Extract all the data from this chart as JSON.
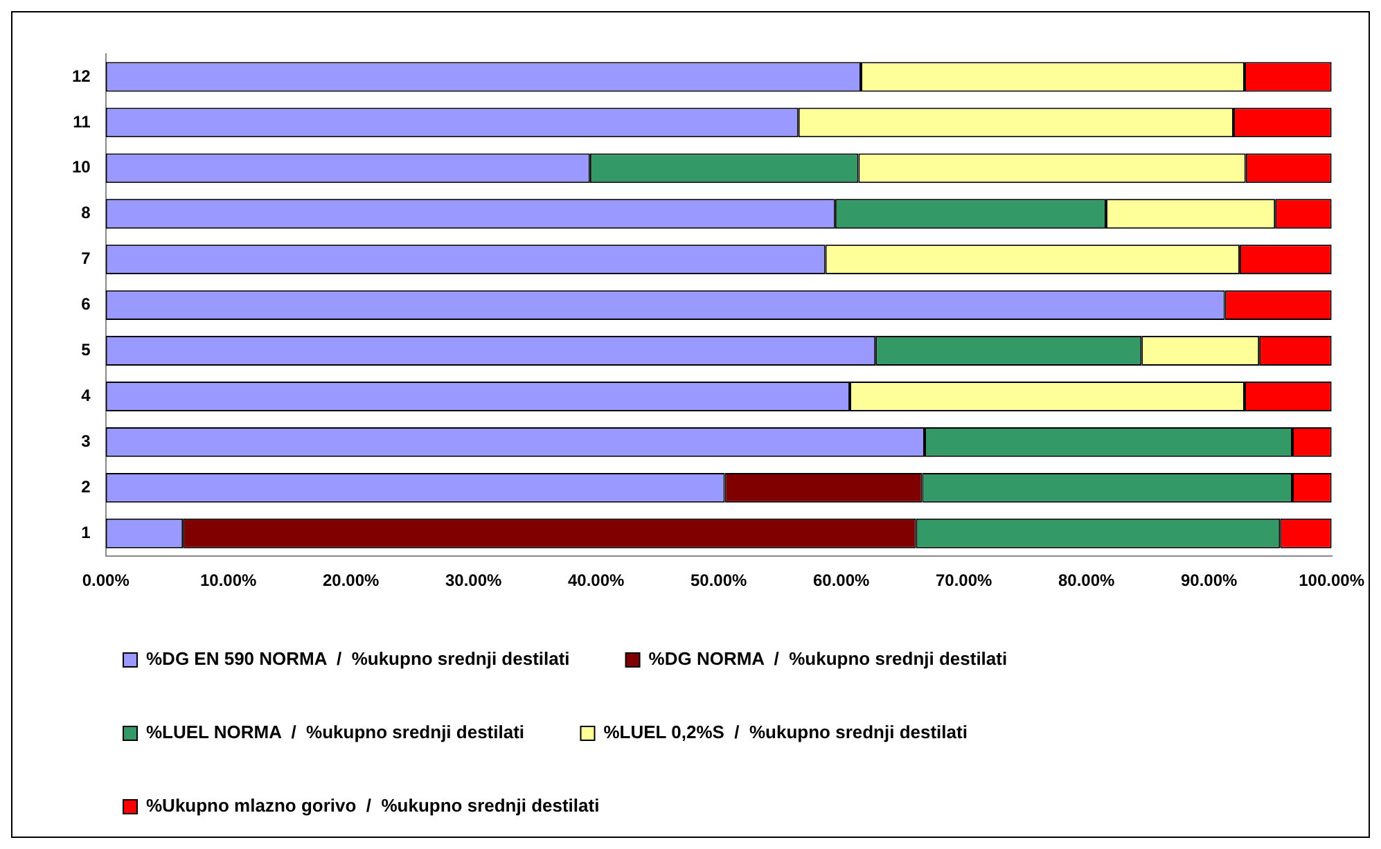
{
  "chart_data": {
    "type": "bar",
    "orientation": "horizontal",
    "stacked": true,
    "categories": [
      "12",
      "11",
      "10",
      "8",
      "7",
      "6",
      "5",
      "4",
      "3",
      "2",
      "1"
    ],
    "series": [
      {
        "name": "%DG EN 590 NORMA  /  %ukupno srednji destilati",
        "color": "#9999ff",
        "values": [
          61.6,
          56.5,
          39.5,
          59.5,
          58.7,
          91.3,
          62.8,
          60.7,
          66.8,
          50.5,
          6.3
        ]
      },
      {
        "name": "%DG NORMA  /  %ukupno srednji destilati",
        "color": "#800000",
        "values": [
          0,
          0,
          0,
          0,
          0,
          0,
          0,
          0,
          0,
          16.1,
          59.8
        ]
      },
      {
        "name": "%LUEL NORMA  /  %ukupno srednji destilati",
        "color": "#339966",
        "values": [
          0,
          0,
          21.9,
          22.1,
          0,
          0,
          21.7,
          0,
          30.0,
          30.2,
          29.7
        ]
      },
      {
        "name": "%LUEL 0,2%S  /  %ukupno srednji destilati",
        "color": "#ffff99",
        "values": [
          31.3,
          35.5,
          31.6,
          13.8,
          33.8,
          0,
          9.6,
          32.2,
          0,
          0,
          0
        ]
      },
      {
        "name": "%Ukupno mlazno gorivo  /  %ukupno srednji destilati",
        "color": "#ff0000",
        "values": [
          7.1,
          8.0,
          7.0,
          4.6,
          7.5,
          8.7,
          5.9,
          7.1,
          3.2,
          3.2,
          4.2
        ]
      }
    ],
    "xlim": [
      0,
      100
    ],
    "xticks": [
      {
        "value": 0,
        "label": "0.00%"
      },
      {
        "value": 10,
        "label": "10.00%"
      },
      {
        "value": 20,
        "label": "20.00%"
      },
      {
        "value": 30,
        "label": "30.00%"
      },
      {
        "value": 40,
        "label": "40.00%"
      },
      {
        "value": 50,
        "label": "50.00%"
      },
      {
        "value": 60,
        "label": "60.00%"
      },
      {
        "value": 70,
        "label": "70.00%"
      },
      {
        "value": 80,
        "label": "80.00%"
      },
      {
        "value": 90,
        "label": "90.00%"
      },
      {
        "value": 100,
        "label": "100.00%"
      }
    ],
    "grid": false,
    "legend": "bottom"
  }
}
